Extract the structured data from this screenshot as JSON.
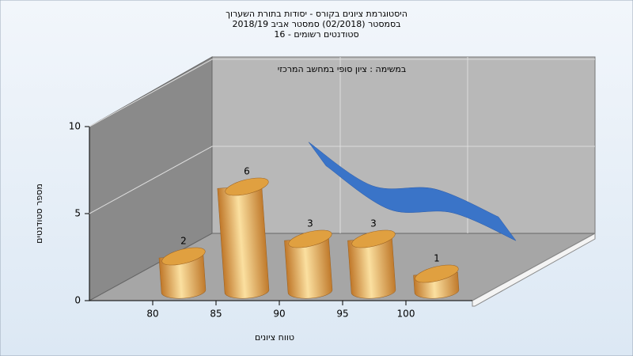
{
  "chart_data": {
    "type": "bar",
    "title": [
      "היסטוגרמת ציונים בקורס - יסודות בתורת השערוך",
      "בסמסטר  (02/2018)  סמסטר אביב 2018/19",
      "סטודנטים רשומים - 16"
    ],
    "annotation": "במשימה : ציון סופי במחשב המרכזי",
    "x_label": "טווח ציונים",
    "y_label": "מספר סטודנטים",
    "categories": [
      "80",
      "85",
      "90",
      "95",
      "100"
    ],
    "series": [
      {
        "values": [
          2,
          6,
          3,
          3,
          1
        ],
        "color": "#e0a040"
      },
      {
        "values": [
          null,
          7.2,
          4.7,
          4.5,
          2.9
        ],
        "color": "#3a74c8"
      }
    ],
    "ylim": [
      0,
      10
    ],
    "yticks": [
      0,
      5,
      10
    ],
    "grid": true
  }
}
